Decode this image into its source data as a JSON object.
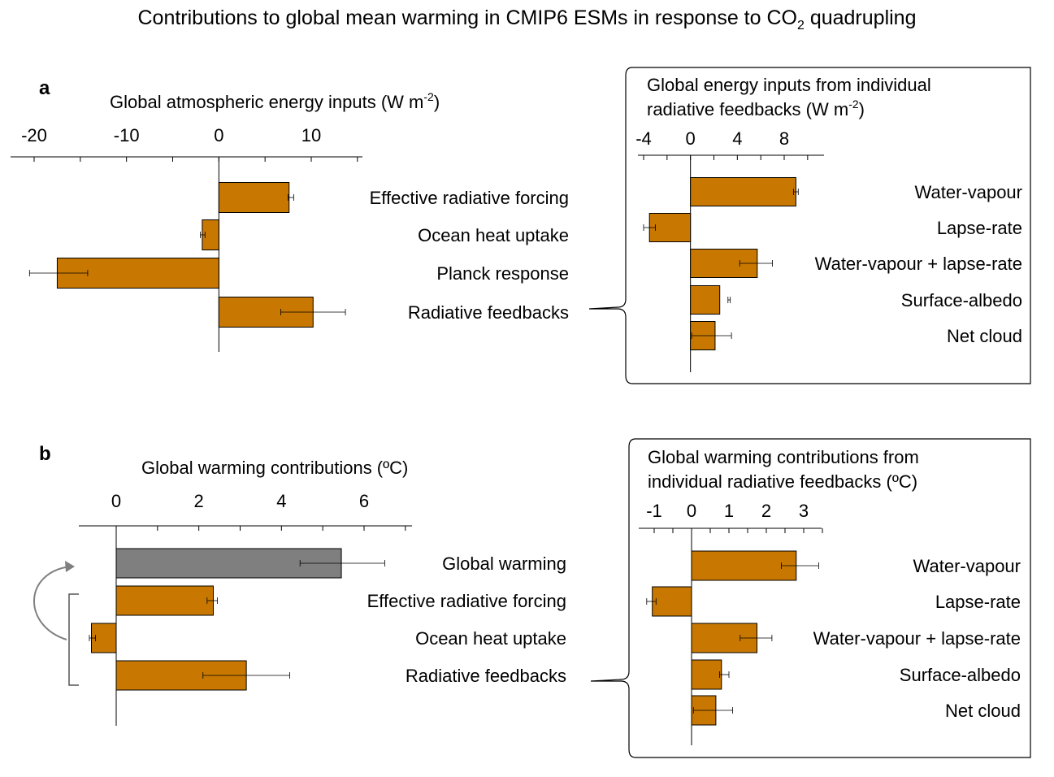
{
  "title": {
    "pre": "Contributions to global mean warming in CMIP6 ESMs in response to CO",
    "sub": "2",
    "post": " quadrupling"
  },
  "colors": {
    "bar": "#c87800",
    "bar_gray": "#7f7f7f",
    "bar_edge": "#000000",
    "axis": "#000000",
    "arrow": "#7f7f7f"
  },
  "chart_data": [
    {
      "id": "a-main",
      "panel_label": "a",
      "type": "bar",
      "orientation": "horizontal",
      "xlabel": "Global atmospheric energy inputs (W m",
      "xlabel_sup": "-2",
      "xlabel_tail": ")",
      "xlim": [
        -21,
        15.5
      ],
      "ticks": [
        -20,
        -15,
        -10,
        -5,
        0,
        5,
        10,
        15
      ],
      "tick_labels": [
        "-20",
        "",
        "-10",
        "",
        "0",
        "",
        "10",
        ""
      ],
      "grid": false,
      "categories": [
        "Effective radiative forcing",
        "Ocean heat uptake",
        "Planck response",
        "Radiative feedbacks"
      ],
      "values": [
        7.6,
        -1.8,
        -17.5,
        10.2
      ],
      "error_low": [
        7.5,
        -2.0,
        -20.5,
        6.7
      ],
      "error_high": [
        8.1,
        -1.5,
        -14.2,
        13.7
      ]
    },
    {
      "id": "a-inset",
      "type": "bar",
      "orientation": "horizontal",
      "xlabel_line1": "Global energy inputs from individual",
      "xlabel_line2": "radiative feedbacks (W m",
      "xlabel_sup": "-2",
      "xlabel_tail": ")",
      "xlim": [
        -4.2,
        11.5
      ],
      "ticks": [
        -4,
        -2,
        0,
        2,
        4,
        6,
        8,
        10
      ],
      "tick_labels": [
        "-4",
        "",
        "0",
        "",
        "4",
        "",
        "8",
        ""
      ],
      "grid": false,
      "categories": [
        "Water-vapour",
        "Lapse-rate",
        "Water-vapour + lapse-rate",
        "Surface-albedo",
        "Net cloud"
      ],
      "values": [
        9.0,
        -3.5,
        5.7,
        2.5,
        2.1
      ],
      "error_low": [
        8.8,
        -4.0,
        4.2,
        3.2,
        0.1
      ],
      "error_high": [
        9.2,
        -3.0,
        7.0,
        3.4,
        3.5
      ]
    },
    {
      "id": "b-main",
      "panel_label": "b",
      "type": "bar",
      "orientation": "horizontal",
      "xlabel": "Global warming contributions (ºC)",
      "xlim": [
        -0.9,
        7.2
      ],
      "ticks": [
        0,
        1,
        2,
        3,
        4,
        5,
        6,
        7
      ],
      "tick_labels": [
        "0",
        "",
        "2",
        "",
        "4",
        "",
        "6",
        ""
      ],
      "grid": false,
      "categories": [
        "Global warming",
        "Effective radiative forcing",
        "Ocean heat uptake",
        "Radiative feedbacks"
      ],
      "values": [
        5.45,
        2.35,
        -0.6,
        3.15
      ],
      "error_low": [
        4.45,
        2.2,
        -0.65,
        2.1
      ],
      "error_high": [
        6.5,
        2.45,
        -0.5,
        4.2
      ],
      "colors": [
        "#7f7f7f",
        "#c87800",
        "#c87800",
        "#c87800"
      ]
    },
    {
      "id": "b-inset",
      "type": "bar",
      "orientation": "horizontal",
      "xlabel_line1": "Global warming contributions from",
      "xlabel_line2": "individual radiative feedbacks (ºC)",
      "xlim": [
        -1.4,
        3.5
      ],
      "ticks": [
        -1,
        -0.5,
        0,
        0.5,
        1,
        1.5,
        2,
        2.5,
        3,
        3.5
      ],
      "tick_labels": [
        "-1",
        "",
        "0",
        "",
        "1",
        "",
        "2",
        "",
        "3",
        ""
      ],
      "grid": false,
      "categories": [
        "Water-vapour",
        "Lapse-rate",
        "Water-vapour + lapse-rate",
        "Surface-albedo",
        "Net cloud"
      ],
      "values": [
        2.8,
        -1.05,
        1.75,
        0.8,
        0.65
      ],
      "error_low": [
        2.4,
        -1.2,
        1.3,
        0.75,
        0.05
      ],
      "error_high": [
        3.4,
        -0.95,
        2.15,
        1.0,
        1.1
      ]
    }
  ]
}
